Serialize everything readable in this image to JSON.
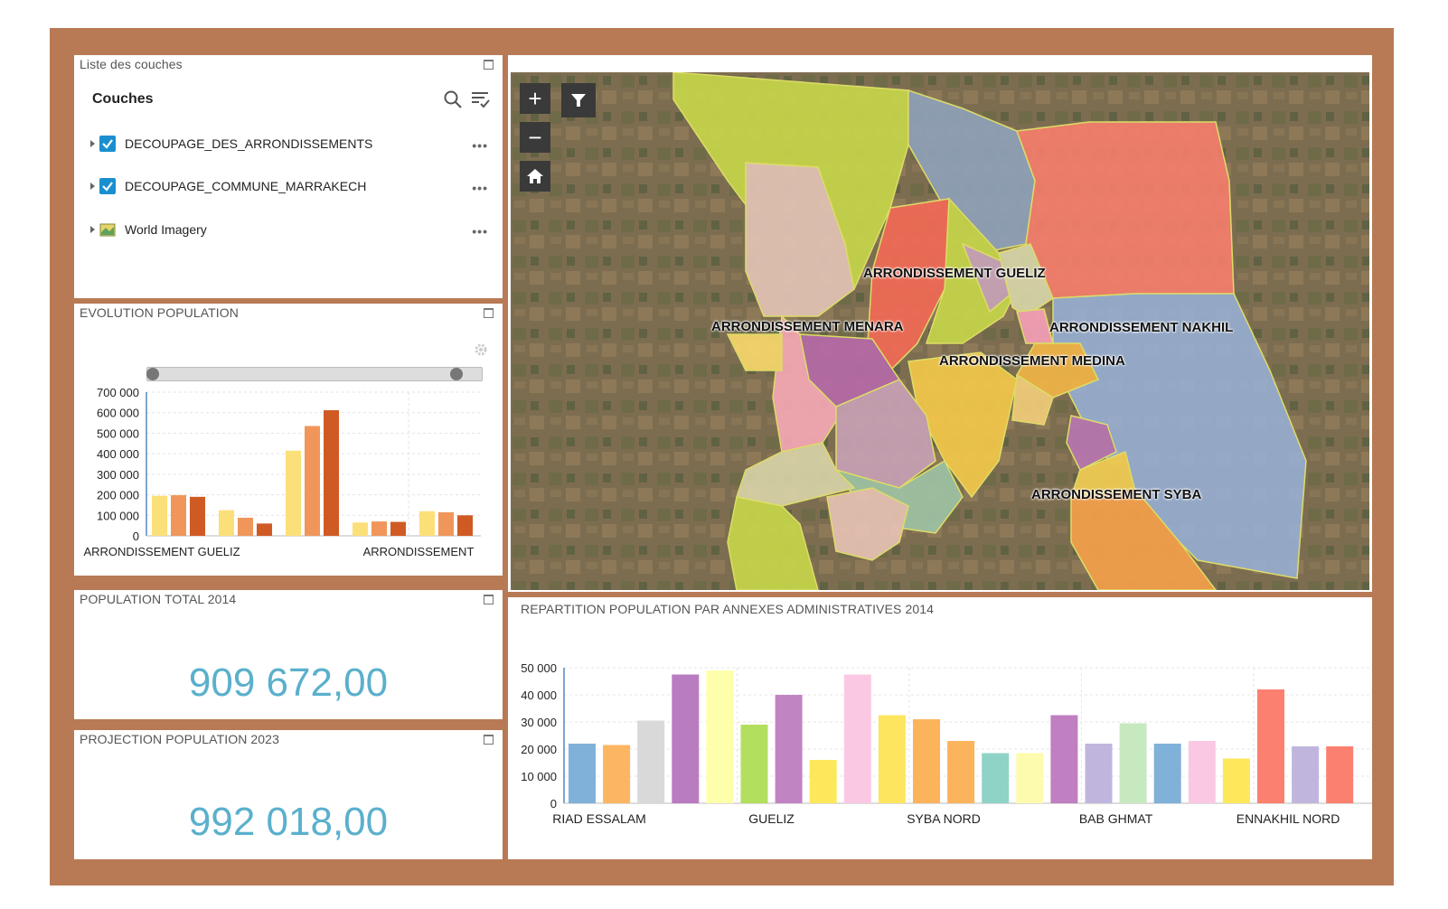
{
  "layer_list": {
    "panel_title": "Liste des couches",
    "header": "Couches",
    "layers": [
      {
        "name": "DECOUPAGE_DES_ARRONDISSEMENTS",
        "checked": true
      },
      {
        "name": "DECOUPAGE_COMMUNE_MARRAKECH",
        "checked": true
      },
      {
        "name": "World Imagery",
        "checked": false
      }
    ],
    "more_label": "•••"
  },
  "evolution": {
    "panel_title": "EVOLUTION POPULATION"
  },
  "population_total": {
    "panel_title": "POPULATION TOTAL 2014",
    "value": "909 672,00"
  },
  "projection": {
    "panel_title": "PROJECTION POPULATION 2023",
    "value": "992 018,00"
  },
  "map": {
    "labels": {
      "gueliz": "ARRONDISSEMENT GUELIZ",
      "menara": "ARRONDISSEMENT MENARA",
      "nakhil": "ARRONDISSEMENT NAKHIL",
      "medina": "ARRONDISSEMENT MEDINA",
      "syba": "ARRONDISSEMENT SYBA"
    },
    "zoom_in": "+",
    "zoom_out": "−"
  },
  "repartition": {
    "panel_title": "REPARTITION POPULATION PAR ANNEXES ADMINISTRATIVES 2014"
  },
  "chart_data": [
    {
      "type": "bar",
      "categories": [
        "ARRONDISSEMENT GUELIZ",
        "",
        "",
        "ARRONDISSEMENT",
        ""
      ],
      "tick_labels": [
        "ARRONDISSEMENT GUELIZ",
        "ARRONDISSEMENT"
      ],
      "series": [
        {
          "values": [
            195000,
            125000,
            415000,
            65000,
            120000
          ],
          "color": "#fbe07a"
        },
        {
          "values": [
            198000,
            88000,
            535000,
            70000,
            115000
          ],
          "color": "#f0965a"
        },
        {
          "values": [
            190000,
            60000,
            612000,
            68000,
            100000
          ],
          "color": "#d05a24"
        }
      ],
      "yticks": [
        "0",
        "100 000",
        "200 000",
        "300 000",
        "400 000",
        "500 000",
        "600 000",
        "700 000"
      ],
      "ylim": [
        0,
        700000
      ],
      "grid": true
    },
    {
      "type": "bar",
      "tick_labels": [
        "RIAD ESSALAM",
        "GUELIZ",
        "SYBA NORD",
        "BAB GHMAT",
        "ENNAKHIL NORD"
      ],
      "values": [
        22000,
        21500,
        30500,
        47500,
        49000,
        29000,
        40000,
        16000,
        47500,
        32500,
        31000,
        23000,
        18500,
        18500,
        32500,
        22000,
        29500,
        22000,
        23000,
        16500,
        42000,
        21000,
        21000
      ],
      "colors": [
        "#7fb1d9",
        "#fcb562",
        "#d9d9d9",
        "#b97cc0",
        "#ffffab",
        "#b3df5e",
        "#c184c2",
        "#fce85a",
        "#fbc8e3",
        "#fde55f",
        "#fbb45c",
        "#fbb45c",
        "#8fd3c6",
        "#fdfbae",
        "#bf7fc0",
        "#c0b6dd",
        "#c7e9c0",
        "#7fb1d9",
        "#fbc8e3",
        "#fce85a",
        "#fb8070",
        "#c0b6dd",
        "#fb8070"
      ],
      "yticks": [
        "0",
        "10 000",
        "20 000",
        "30 000",
        "40 000",
        "50 000"
      ],
      "ylim": [
        0,
        50000
      ],
      "grid": true
    }
  ]
}
